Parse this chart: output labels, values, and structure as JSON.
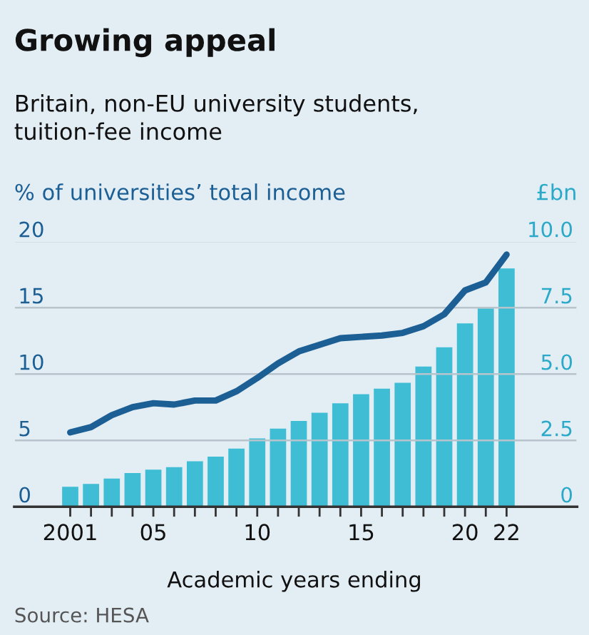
{
  "chart_data": {
    "type": "bar",
    "title": "Growing appeal",
    "subtitle": "Britain, non-EU university students,\ntuition-fee income",
    "ylabel": "% of universities’ total income",
    "y2label": "£bn",
    "xlabel": "Academic years ending",
    "annotations": [
      "Source: HESA"
    ],
    "x": [
      2001,
      2002,
      2003,
      2004,
      2005,
      2006,
      2007,
      2008,
      2009,
      2010,
      2011,
      2012,
      2013,
      2014,
      2015,
      2016,
      2017,
      2018,
      2019,
      2020,
      2021,
      2022
    ],
    "series": [
      {
        "axis": "y2",
        "color": "#3ebdd5",
        "values": [
          0.75,
          0.86,
          1.06,
          1.27,
          1.4,
          1.49,
          1.71,
          1.89,
          2.19,
          2.57,
          2.94,
          3.23,
          3.54,
          3.9,
          4.24,
          4.45,
          4.67,
          5.28,
          6.01,
          6.91,
          7.47,
          8.98
        ]
      },
      {
        "type": "line",
        "axis": "y",
        "color": "#1c5f95",
        "values": [
          5.6,
          6.0,
          6.9,
          7.5,
          7.8,
          7.7,
          8.0,
          8.0,
          8.7,
          9.7,
          10.8,
          11.7,
          12.2,
          12.7,
          12.8,
          12.9,
          13.1,
          13.6,
          14.5,
          16.3,
          16.9,
          19.0
        ]
      }
    ],
    "xlim": [
      1998.3,
      2025.4
    ],
    "xticks": [
      2001,
      {
        "value": 2002,
        "label": null
      },
      {
        "value": 2003,
        "label": null
      },
      {
        "value": 2004,
        "label": null
      },
      {
        "value": 2005,
        "label": "05"
      },
      {
        "value": 2006,
        "label": null
      },
      {
        "value": 2007,
        "label": null
      },
      {
        "value": 2008,
        "label": null
      },
      {
        "value": 2009,
        "label": null
      },
      {
        "value": 2010,
        "label": "10"
      },
      {
        "value": 2011,
        "label": null
      },
      {
        "value": 2012,
        "label": null
      },
      {
        "value": 2013,
        "label": null
      },
      {
        "value": 2014,
        "label": null
      },
      {
        "value": 2015,
        "label": "15"
      },
      {
        "value": 2016,
        "label": null
      },
      {
        "value": 2017,
        "label": null
      },
      {
        "value": 2018,
        "label": null
      },
      {
        "value": 2019,
        "label": null
      },
      {
        "value": 2020,
        "label": "20"
      },
      {
        "value": 2021,
        "label": null
      },
      {
        "value": 2022,
        "label": "22"
      }
    ],
    "ylim": [
      0,
      20
    ],
    "yticks": [
      0,
      5,
      10,
      15,
      20
    ],
    "y2lim": [
      0,
      10
    ],
    "y2ticks": [
      {
        "value": 0,
        "label": "0"
      },
      {
        "value": 2.5,
        "label": "2.5"
      },
      {
        "value": 5,
        "label": "5.0"
      },
      {
        "value": 7.5,
        "label": "7.5"
      },
      {
        "value": 10,
        "label": "10.0"
      }
    ],
    "grid": "y",
    "legend": false,
    "marker": "none",
    "line_style": "solid"
  }
}
